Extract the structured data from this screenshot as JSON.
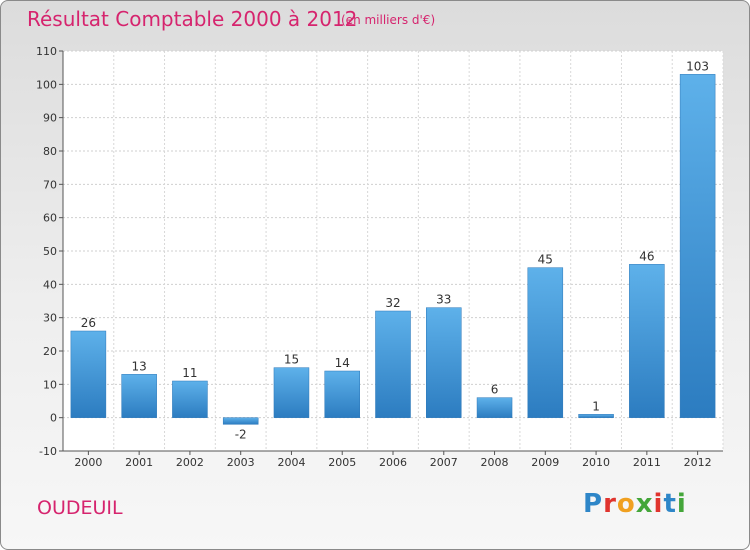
{
  "chart_data": {
    "type": "bar",
    "title": "Résultat Comptable 2000 à 2012",
    "subtitle": "(en milliers d'€)",
    "categories": [
      "2000",
      "2001",
      "2002",
      "2003",
      "2004",
      "2005",
      "2006",
      "2007",
      "2008",
      "2009",
      "2010",
      "2011",
      "2012"
    ],
    "values": [
      26,
      13,
      11,
      -2,
      15,
      14,
      32,
      33,
      6,
      45,
      1,
      46,
      103
    ],
    "ylim": [
      -10,
      110
    ],
    "yticks": [
      -10,
      0,
      10,
      20,
      30,
      40,
      50,
      60,
      70,
      80,
      90,
      100,
      110
    ],
    "grid": true,
    "xlabel": "",
    "ylabel": "",
    "bar_color": "#3a8fd2"
  },
  "commune": "OUDEUIL",
  "logo": {
    "letters": [
      "P",
      "r",
      "o",
      "x",
      "i",
      "t",
      "i"
    ],
    "colors": [
      "#2e86c8",
      "#e0342e",
      "#f0a020",
      "#44a63a",
      "#e0342e",
      "#2e86c8",
      "#44a63a"
    ]
  }
}
